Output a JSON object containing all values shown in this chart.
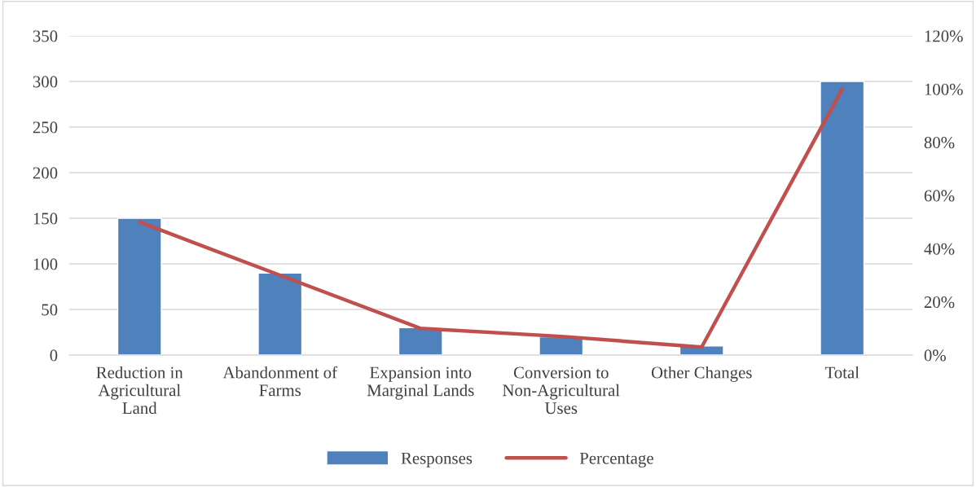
{
  "chart_data": {
    "type": "bar",
    "categories": [
      "Reduction in Agricultural Land",
      "Abandonment of Farms",
      "Expansion into Marginal Lands",
      "Conversion to Non-Agricultural Uses",
      "Other Changes",
      "Total"
    ],
    "series": [
      {
        "name": "Responses",
        "color": "#4f81bd",
        "values": [
          150,
          90,
          30,
          20,
          10,
          300
        ]
      },
      {
        "name": "Percentage",
        "type": "line",
        "axis": "y2",
        "color": "#c0504d",
        "values": [
          50,
          30,
          10,
          7,
          3,
          100
        ]
      }
    ],
    "ylim": [
      0,
      350
    ],
    "yticks": [
      0,
      50,
      100,
      150,
      200,
      250,
      300,
      350
    ],
    "y2lim": [
      0,
      120
    ],
    "y2ticks": [
      {
        "value": 0,
        "label": "0%"
      },
      {
        "value": 20,
        "label": "20%"
      },
      {
        "value": 40,
        "label": "40%"
      },
      {
        "value": 60,
        "label": "60%"
      },
      {
        "value": 80,
        "label": "80%"
      },
      {
        "value": 100,
        "label": "100%"
      },
      {
        "value": 120,
        "label": "120%"
      }
    ],
    "grid": "y",
    "legend": "bottom",
    "marker": "none",
    "line_style": "solid"
  }
}
